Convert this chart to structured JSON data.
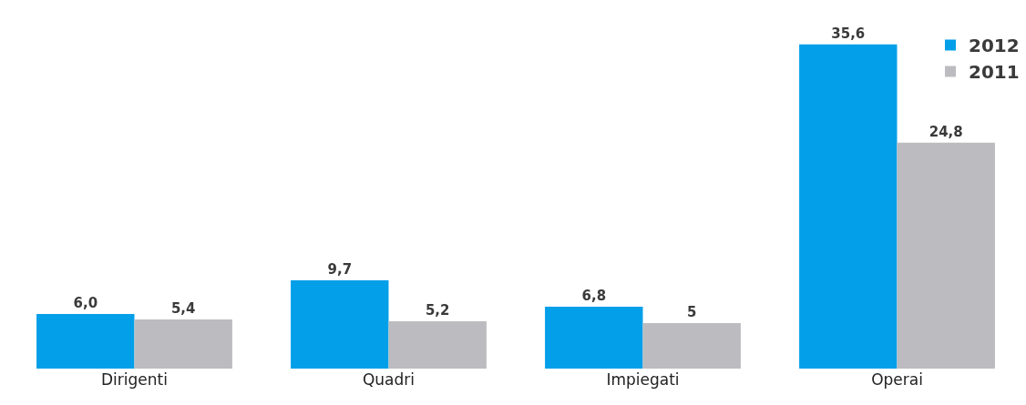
{
  "chart_data": {
    "type": "bar",
    "categories": [
      "Dirigenti",
      "Quadri",
      "Impiegati",
      "Operai"
    ],
    "series": [
      {
        "name": "2012",
        "color": "#049fe9",
        "values": [
          6.0,
          9.7,
          6.8,
          35.6
        ],
        "value_labels": [
          "6,0",
          "9,7",
          "6,8",
          "35,6"
        ]
      },
      {
        "name": "2011",
        "color": "#bcbcc0",
        "values": [
          5.4,
          5.2,
          5,
          24.8
        ],
        "value_labels": [
          "5,4",
          "5,2",
          "5",
          "24,8"
        ]
      }
    ],
    "legend": "top right"
  }
}
